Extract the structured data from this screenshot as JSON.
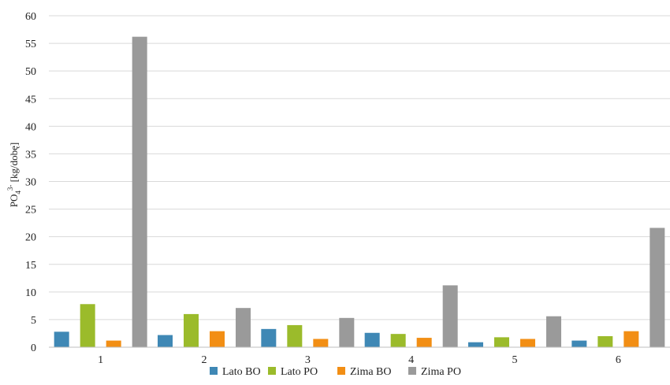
{
  "chart_data": {
    "type": "bar",
    "categories": [
      "1",
      "2",
      "3",
      "4",
      "5",
      "6"
    ],
    "series": [
      {
        "name": "Lato BO",
        "color": "#3f88b5",
        "values": [
          2.8,
          2.2,
          3.3,
          2.6,
          0.9,
          1.2
        ]
      },
      {
        "name": "Lato PO",
        "color": "#9bbb2b",
        "values": [
          7.8,
          6.0,
          4.0,
          2.4,
          1.8,
          2.0
        ]
      },
      {
        "name": "Zima BO",
        "color": "#f28e14",
        "values": [
          1.2,
          2.9,
          1.5,
          1.7,
          1.5,
          2.9
        ]
      },
      {
        "name": "Zima PO",
        "color": "#9a9a9a",
        "values": [
          56.2,
          7.1,
          5.3,
          11.2,
          5.6,
          21.6
        ]
      }
    ],
    "ylabel_main": "PO",
    "ylabel_sub": "4",
    "ylabel_sup": "3-",
    "ylabel_unit": " [kg/dobę]",
    "ylim": [
      0,
      60
    ],
    "yticks": [
      0,
      5,
      10,
      15,
      20,
      25,
      30,
      35,
      40,
      45,
      50,
      55,
      60
    ],
    "grid": true,
    "legend_position": "bottom"
  }
}
